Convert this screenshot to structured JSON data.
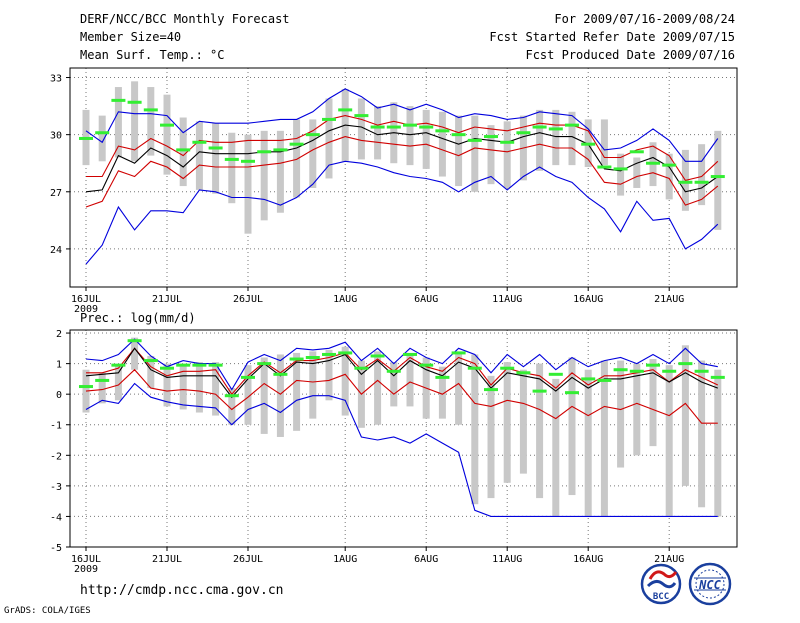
{
  "header": {
    "title": "DERF/NCC/BCC Monthly Forecast",
    "member_size": "Member Size=40",
    "variable": "Mean Surf. Temp.: °C",
    "period": "For 2009/07/16-2009/08/24",
    "started": "Fcst Started Refer Date 2009/07/15",
    "produced": "Fcst Produced Date 2009/07/16"
  },
  "footer": {
    "url": "http://cmdp.ncc.cma.gov.cn",
    "grads": "GrADS: COLA/IGES",
    "logo_bcc": "BCC",
    "logo_ncc": "NCC"
  },
  "colors": {
    "max_min": "#0000dd",
    "std_band": "#d00000",
    "mean": "#000000",
    "median": "#33ee33",
    "box": "#c8c8c8"
  },
  "chart_data": [
    {
      "type": "line",
      "title": "Mean Surf. Temp.: °C",
      "xlabel": "",
      "ylabel": "°C",
      "ylim": [
        22,
        33.5
      ],
      "yticks": [
        24,
        27,
        30,
        33
      ],
      "grid": true,
      "x": [
        1,
        2,
        3,
        4,
        5,
        6,
        7,
        8,
        9,
        10,
        11,
        12,
        13,
        14,
        15,
        16,
        17,
        18,
        19,
        20,
        21,
        22,
        23,
        24,
        25,
        26,
        27,
        28,
        29,
        30,
        31,
        32,
        33,
        34,
        35,
        36,
        37,
        38,
        39,
        40
      ],
      "xticks": [
        {
          "x": 1,
          "label": "16JUL",
          "sub": "2009"
        },
        {
          "x": 6,
          "label": "21JUL"
        },
        {
          "x": 11,
          "label": "26JUL"
        },
        {
          "x": 17,
          "label": "1AUG"
        },
        {
          "x": 22,
          "label": "6AUG"
        },
        {
          "x": 27,
          "label": "11AUG"
        },
        {
          "x": 32,
          "label": "16AUG"
        },
        {
          "x": 37,
          "label": "21AUG"
        }
      ],
      "series": [
        {
          "name": "max",
          "color": "#0000dd",
          "values": [
            30.2,
            29.6,
            31.2,
            31.1,
            31.1,
            31.0,
            30.1,
            30.7,
            30.6,
            30.6,
            30.6,
            30.7,
            30.8,
            30.8,
            31.2,
            31.9,
            32.4,
            32.0,
            31.4,
            31.6,
            31.3,
            31.6,
            31.3,
            30.9,
            31.1,
            31.0,
            30.8,
            30.9,
            31.2,
            31.1,
            31.0,
            30.3,
            29.2,
            29.3,
            29.7,
            30.3,
            29.7,
            28.6,
            28.6,
            29.8
          ]
        },
        {
          "name": "mean_plus_std",
          "color": "#d00000",
          "values": [
            27.8,
            27.8,
            29.4,
            29.2,
            29.8,
            29.4,
            28.9,
            29.7,
            29.6,
            29.6,
            29.7,
            29.7,
            29.7,
            29.8,
            30.2,
            30.8,
            31.0,
            30.8,
            30.5,
            30.7,
            30.5,
            30.6,
            30.4,
            30.1,
            30.4,
            30.3,
            30.2,
            30.4,
            30.6,
            30.5,
            30.5,
            30.2,
            28.8,
            28.8,
            29.2,
            29.4,
            28.9,
            27.6,
            27.8,
            28.6
          ]
        },
        {
          "name": "mean",
          "color": "#000000",
          "values": [
            27.0,
            27.1,
            28.9,
            28.5,
            29.3,
            28.9,
            28.3,
            29.1,
            29.0,
            29.0,
            29.0,
            29.1,
            29.1,
            29.3,
            29.7,
            30.2,
            30.5,
            30.4,
            30.0,
            30.1,
            30.0,
            30.1,
            29.8,
            29.5,
            29.8,
            29.7,
            29.6,
            29.9,
            30.1,
            29.9,
            29.9,
            29.5,
            28.2,
            28.1,
            28.5,
            28.8,
            28.3,
            27.0,
            27.2,
            27.8
          ]
        },
        {
          "name": "mean_minus_std",
          "color": "#d00000",
          "values": [
            26.2,
            26.5,
            28.1,
            27.8,
            28.6,
            28.3,
            27.7,
            28.4,
            28.3,
            28.3,
            28.3,
            28.4,
            28.5,
            28.7,
            29.2,
            29.6,
            29.9,
            29.7,
            29.6,
            29.5,
            29.4,
            29.5,
            29.2,
            28.9,
            29.3,
            29.2,
            29.1,
            29.3,
            29.5,
            29.3,
            29.3,
            28.7,
            27.5,
            27.4,
            27.8,
            28.0,
            27.7,
            26.3,
            26.6,
            27.3
          ]
        },
        {
          "name": "min",
          "color": "#0000dd",
          "values": [
            23.2,
            24.2,
            26.2,
            25.0,
            26.0,
            26.0,
            25.9,
            27.1,
            27.0,
            26.7,
            26.7,
            26.6,
            26.3,
            26.7,
            27.4,
            28.4,
            28.6,
            28.5,
            28.3,
            28.0,
            27.8,
            27.7,
            27.5,
            27.0,
            27.5,
            27.8,
            27.1,
            27.8,
            28.3,
            27.8,
            27.5,
            26.7,
            26.1,
            24.9,
            26.5,
            25.5,
            25.6,
            24.0,
            24.5,
            25.3
          ]
        }
      ],
      "boxes": {
        "low": [
          28.4,
          28.6,
          28.8,
          28.6,
          28.9,
          27.9,
          27.3,
          27.1,
          26.9,
          26.4,
          24.8,
          25.5,
          25.9,
          26.7,
          27.2,
          27.7,
          28.6,
          28.7,
          28.7,
          28.5,
          28.4,
          28.2,
          27.8,
          27.3,
          27.0,
          27.4,
          27.2,
          27.6,
          28.1,
          28.4,
          28.4,
          28.3,
          28.4,
          26.8,
          27.2,
          27.3,
          26.6,
          26.0,
          26.3,
          25.0
        ],
        "high": [
          31.3,
          31.0,
          32.5,
          32.8,
          32.5,
          32.1,
          30.9,
          30.7,
          30.6,
          30.1,
          30.0,
          30.2,
          30.2,
          30.8,
          30.8,
          31.9,
          32.4,
          31.9,
          31.5,
          31.7,
          31.5,
          31.3,
          31.2,
          31.0,
          31.0,
          30.5,
          30.7,
          31.0,
          31.3,
          31.3,
          31.2,
          30.8,
          30.8,
          29.0,
          28.8,
          29.6,
          29.0,
          29.2,
          29.5,
          30.2
        ]
      },
      "median": [
        29.8,
        30.1,
        31.8,
        31.7,
        31.3,
        30.5,
        29.2,
        29.6,
        29.3,
        28.7,
        28.6,
        29.1,
        29.2,
        29.5,
        30.0,
        30.8,
        31.3,
        31.0,
        30.4,
        30.4,
        30.5,
        30.4,
        30.2,
        30.0,
        29.7,
        29.9,
        29.6,
        30.1,
        30.4,
        30.3,
        30.5,
        29.5,
        28.3,
        28.2,
        29.1,
        28.5,
        28.4,
        27.5,
        27.5,
        27.8
      ]
    },
    {
      "type": "line",
      "title": "Prec.: log(mm/d)",
      "xlabel": "",
      "ylabel": "log(mm/d)",
      "ylim": [
        -5,
        2
      ],
      "yticks": [
        -5,
        -4,
        -3,
        -2,
        -1,
        0,
        1,
        2
      ],
      "grid": true,
      "x": [
        1,
        2,
        3,
        4,
        5,
        6,
        7,
        8,
        9,
        10,
        11,
        12,
        13,
        14,
        15,
        16,
        17,
        18,
        19,
        20,
        21,
        22,
        23,
        24,
        25,
        26,
        27,
        28,
        29,
        30,
        31,
        32,
        33,
        34,
        35,
        36,
        37,
        38,
        39,
        40
      ],
      "xticks": [
        {
          "x": 1,
          "label": "16JUL",
          "sub": "2009"
        },
        {
          "x": 6,
          "label": "21JUL"
        },
        {
          "x": 11,
          "label": "26JUL"
        },
        {
          "x": 17,
          "label": "1AUG"
        },
        {
          "x": 22,
          "label": "6AUG"
        },
        {
          "x": 27,
          "label": "11AUG"
        },
        {
          "x": 32,
          "label": "16AUG"
        },
        {
          "x": 37,
          "label": "21AUG"
        }
      ],
      "series": [
        {
          "name": "max",
          "color": "#0000dd",
          "values": [
            1.15,
            1.1,
            1.3,
            1.8,
            1.25,
            0.9,
            1.1,
            1.0,
            1.0,
            0.15,
            1.05,
            1.3,
            1.1,
            1.5,
            1.45,
            1.5,
            1.7,
            1.1,
            1.5,
            1.0,
            1.5,
            1.2,
            1.0,
            1.5,
            1.3,
            0.7,
            1.3,
            0.9,
            1.3,
            0.8,
            1.2,
            0.9,
            1.1,
            1.2,
            1.0,
            1.3,
            1.0,
            1.5,
            1.0,
            0.9
          ]
        },
        {
          "name": "mean_plus_std",
          "color": "#d00000",
          "values": [
            0.7,
            0.7,
            0.85,
            1.5,
            0.9,
            0.6,
            0.75,
            0.75,
            0.8,
            0.0,
            0.6,
            1.05,
            0.7,
            1.1,
            1.1,
            1.2,
            1.35,
            0.8,
            1.15,
            0.75,
            1.2,
            0.9,
            0.75,
            1.2,
            1.0,
            0.3,
            0.85,
            0.7,
            0.6,
            0.2,
            0.7,
            0.3,
            0.6,
            0.6,
            0.7,
            0.8,
            0.4,
            0.8,
            0.55,
            0.3
          ]
        },
        {
          "name": "mean",
          "color": "#000000",
          "values": [
            0.6,
            0.65,
            0.7,
            1.5,
            0.8,
            0.55,
            0.6,
            0.6,
            0.6,
            -0.1,
            0.5,
            1.0,
            0.6,
            1.05,
            1.0,
            1.1,
            1.3,
            0.65,
            1.1,
            0.6,
            1.1,
            0.8,
            0.6,
            1.05,
            0.85,
            0.2,
            0.7,
            0.6,
            0.5,
            0.1,
            0.55,
            0.2,
            0.5,
            0.5,
            0.6,
            0.7,
            0.4,
            0.7,
            0.4,
            0.2
          ]
        },
        {
          "name": "mean_minus_std",
          "color": "#d00000",
          "values": [
            0.1,
            0.15,
            0.3,
            0.8,
            0.2,
            0.1,
            0.15,
            0.1,
            0.0,
            -0.5,
            -0.1,
            0.35,
            0.0,
            0.45,
            0.4,
            0.45,
            0.65,
            0.0,
            0.45,
            0.0,
            0.4,
            0.2,
            0.0,
            0.35,
            -0.3,
            -0.4,
            -0.2,
            -0.3,
            -0.5,
            -0.8,
            -0.4,
            -0.7,
            -0.4,
            -0.5,
            -0.3,
            -0.5,
            -0.7,
            -0.3,
            -0.95,
            -0.95
          ]
        },
        {
          "name": "min",
          "color": "#0000dd",
          "values": [
            -0.5,
            -0.2,
            -0.3,
            0.35,
            -0.1,
            -0.25,
            -0.35,
            -0.4,
            -0.45,
            -1.0,
            -0.5,
            -0.3,
            -0.6,
            -0.2,
            -0.05,
            -0.05,
            -0.2,
            -1.4,
            -1.5,
            -1.4,
            -1.6,
            -1.3,
            -1.6,
            -1.9,
            -3.8,
            -4.0,
            -4.0,
            -4.0,
            -4.0,
            -4.0,
            -4.0,
            -4.0,
            -4.0,
            -4.0,
            -4.0,
            -4.0,
            -4.0,
            -4.0,
            -4.0,
            -4.0
          ]
        }
      ],
      "boxes": {
        "low": [
          -0.6,
          -0.3,
          -0.2,
          0.8,
          0.2,
          -0.4,
          -0.5,
          -0.6,
          -0.7,
          -1.0,
          -1.0,
          -1.3,
          -1.4,
          -1.2,
          -0.8,
          -0.2,
          -0.7,
          -1.1,
          -1.0,
          -0.4,
          -0.4,
          -0.8,
          -0.8,
          -1.0,
          -3.6,
          -3.4,
          -2.9,
          -2.6,
          -3.4,
          -4.0,
          -3.3,
          -4.0,
          -4.0,
          -2.4,
          -2.0,
          -1.7,
          -4.0,
          -3.0,
          -3.7,
          -4.0
        ],
        "high": [
          0.8,
          0.7,
          0.95,
          1.85,
          1.25,
          1.0,
          1.0,
          1.05,
          1.05,
          0.2,
          0.95,
          1.2,
          1.3,
          1.35,
          1.4,
          1.45,
          1.55,
          1.1,
          1.4,
          1.05,
          1.35,
          1.2,
          0.9,
          1.4,
          1.3,
          0.6,
          1.05,
          0.8,
          1.0,
          0.5,
          1.2,
          0.8,
          1.1,
          1.1,
          1.0,
          1.15,
          0.95,
          1.6,
          1.1,
          0.8
        ]
      },
      "median": [
        0.25,
        0.45,
        0.95,
        1.75,
        1.1,
        0.85,
        0.95,
        0.95,
        0.95,
        -0.05,
        0.55,
        1.0,
        0.65,
        1.15,
        1.2,
        1.3,
        1.35,
        0.85,
        1.25,
        0.75,
        1.3,
        0.95,
        0.55,
        1.35,
        0.85,
        0.15,
        0.85,
        0.7,
        0.1,
        0.65,
        0.05,
        0.5,
        0.45,
        0.8,
        0.75,
        0.95,
        0.75,
        1.0,
        0.75,
        0.55
      ]
    }
  ]
}
